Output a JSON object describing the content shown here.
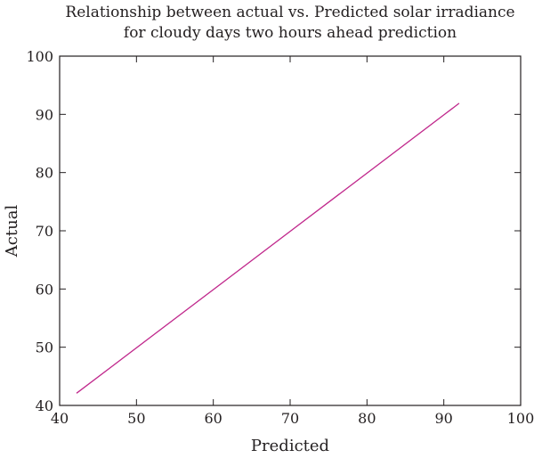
{
  "chart_data": {
    "type": "line",
    "title": "Relationship between actual vs. Predicted solar irradiance for cloudy days two hours ahead prediction",
    "title_lines": [
      "Relationship between actual vs. Predicted solar irradiance",
      "for cloudy days two hours ahead prediction"
    ],
    "xlabel": "Predicted",
    "ylabel": "Actual",
    "xlim": [
      40,
      100
    ],
    "ylim": [
      40,
      100
    ],
    "xticks": [
      "40",
      "50",
      "60",
      "70",
      "80",
      "90",
      "100"
    ],
    "yticks": [
      "40",
      "50",
      "60",
      "70",
      "80",
      "90",
      "100"
    ],
    "grid": false,
    "legend": "none",
    "series": [
      {
        "color": "#c0288c",
        "x": [
          42.2,
          92
        ],
        "y": [
          42.1,
          91.9
        ]
      }
    ]
  }
}
